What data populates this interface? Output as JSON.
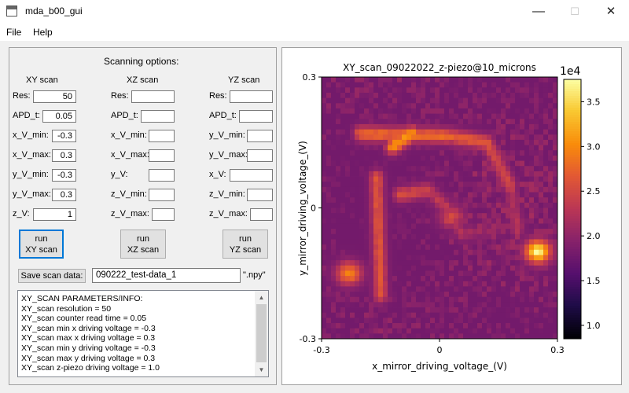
{
  "window": {
    "title": "mda_b00_gui",
    "minimize_glyph": "—",
    "maximize_glyph": "☐",
    "close_glyph": "✕"
  },
  "menu": {
    "items": [
      "File",
      "Help"
    ]
  },
  "options": {
    "heading": "Scanning options:",
    "xy": {
      "title": "XY scan",
      "res_label": "Res:",
      "res": "50",
      "apd_label": "APD_t:",
      "apd": "0.05",
      "xmin_label": "x_V_min:",
      "xmin": "-0.3",
      "xmax_label": "x_V_max:",
      "xmax": "0.3",
      "ymin_label": "y_V_min:",
      "ymin": "-0.3",
      "ymax_label": "y_V_max:",
      "ymax": "0.3",
      "z_label": "z_V:",
      "z": "1",
      "run_line1": "run",
      "run_line2": "XY scan"
    },
    "xz": {
      "title": "XZ scan",
      "res_label": "Res:",
      "res": "",
      "apd_label": "APD_t:",
      "apd": "",
      "xmin_label": "x_V_min:",
      "xmin": "",
      "xmax_label": "x_V_max:",
      "xmax": "",
      "y_label": "y_V:",
      "y": "",
      "zmin_label": "z_V_min:",
      "zmin": "",
      "zmax_label": "z_V_max:",
      "zmax": "",
      "run_line1": "run",
      "run_line2": "XZ scan"
    },
    "yz": {
      "title": "YZ scan",
      "res_label": "Res:",
      "res": "",
      "apd_label": "APD_t:",
      "apd": "",
      "ymin_label": "y_V_min:",
      "ymin": "",
      "ymax_label": "y_V_max:",
      "ymax": "",
      "x_label": "x_V:",
      "x": "",
      "zmin_label": "z_V_min:",
      "zmin": "",
      "zmax_label": "z_V_max:",
      "zmax": "",
      "run_line1": "run",
      "run_line2": "YZ scan"
    },
    "save": {
      "button_label": "Save scan data:",
      "filename": "090222_test-data_1",
      "extension": "\".npy\""
    },
    "console_text": "XY_SCAN PARAMETERS/INFO:\nXY_scan resolution = 50\nXY_scan counter read time = 0.05\nXY_scan min x driving voltage = -0.3\nXY_scan max x driving voltage = 0.3\nXY_scan min y driving voltage = -0.3\nXY_scan max y driving voltage = 0.3\nXY_scan z-piezo driving voltage = 1.0"
  },
  "chart_data": {
    "type": "heatmap",
    "title": "XY_scan_09022022_z-piezo@10_microns",
    "xlabel": "x_mirror_driving_voltage_(V)",
    "ylabel": "y_mirror_driving_voltage_(V)",
    "xlim": [
      -0.3,
      0.3
    ],
    "ylim": [
      -0.3,
      0.3
    ],
    "x_ticks": [
      "-0.3",
      "0",
      "0.3"
    ],
    "y_ticks": [
      "0.3",
      "0",
      "-0.3"
    ],
    "resolution": 50,
    "colormap": "inferno",
    "colorbar": {
      "multiplier_label": "1e4",
      "ticks": [
        "3.5",
        "3.0",
        "2.5",
        "2.0",
        "1.5",
        "1.0"
      ],
      "tick_values": [
        3.5,
        3.0,
        2.5,
        2.0,
        1.5,
        1.0
      ],
      "min": 0.85,
      "max": 3.75
    },
    "background_level": 1.8,
    "features": [
      {
        "kind": "line",
        "from": [
          -0.12,
          0.14
        ],
        "to": [
          -0.07,
          0.17
        ],
        "level": 3.1
      },
      {
        "kind": "line",
        "from": [
          -0.2,
          0.17
        ],
        "to": [
          0.02,
          0.165
        ],
        "level": 2.8
      },
      {
        "kind": "line",
        "from": [
          0.02,
          0.165
        ],
        "to": [
          0.12,
          0.15
        ],
        "level": 2.7
      },
      {
        "kind": "line",
        "from": [
          0.12,
          0.15
        ],
        "to": [
          0.18,
          0.05
        ],
        "level": 2.5
      },
      {
        "kind": "line",
        "from": [
          0.18,
          0.05
        ],
        "to": [
          0.2,
          -0.05
        ],
        "level": 2.2
      },
      {
        "kind": "line",
        "from": [
          -0.16,
          0.07
        ],
        "to": [
          -0.15,
          -0.2
        ],
        "level": 2.6
      },
      {
        "kind": "line",
        "from": [
          -0.1,
          0.03
        ],
        "to": [
          -0.03,
          0.04
        ],
        "level": 2.5
      },
      {
        "kind": "line",
        "from": [
          -0.03,
          0.04
        ],
        "to": [
          0.02,
          0.0
        ],
        "level": 2.3
      },
      {
        "kind": "line",
        "from": [
          0.02,
          0.0
        ],
        "to": [
          0.06,
          -0.06
        ],
        "level": 2.2
      },
      {
        "kind": "line",
        "from": [
          0.06,
          -0.06
        ],
        "to": [
          0.14,
          -0.05
        ],
        "level": 2.1
      },
      {
        "kind": "spot",
        "at": [
          -0.23,
          -0.15
        ],
        "level": 3.0
      },
      {
        "kind": "spot",
        "at": [
          0.25,
          -0.1
        ],
        "level": 3.7
      },
      {
        "kind": "spot",
        "at": [
          0.03,
          -0.02
        ],
        "level": 2.5
      }
    ]
  }
}
